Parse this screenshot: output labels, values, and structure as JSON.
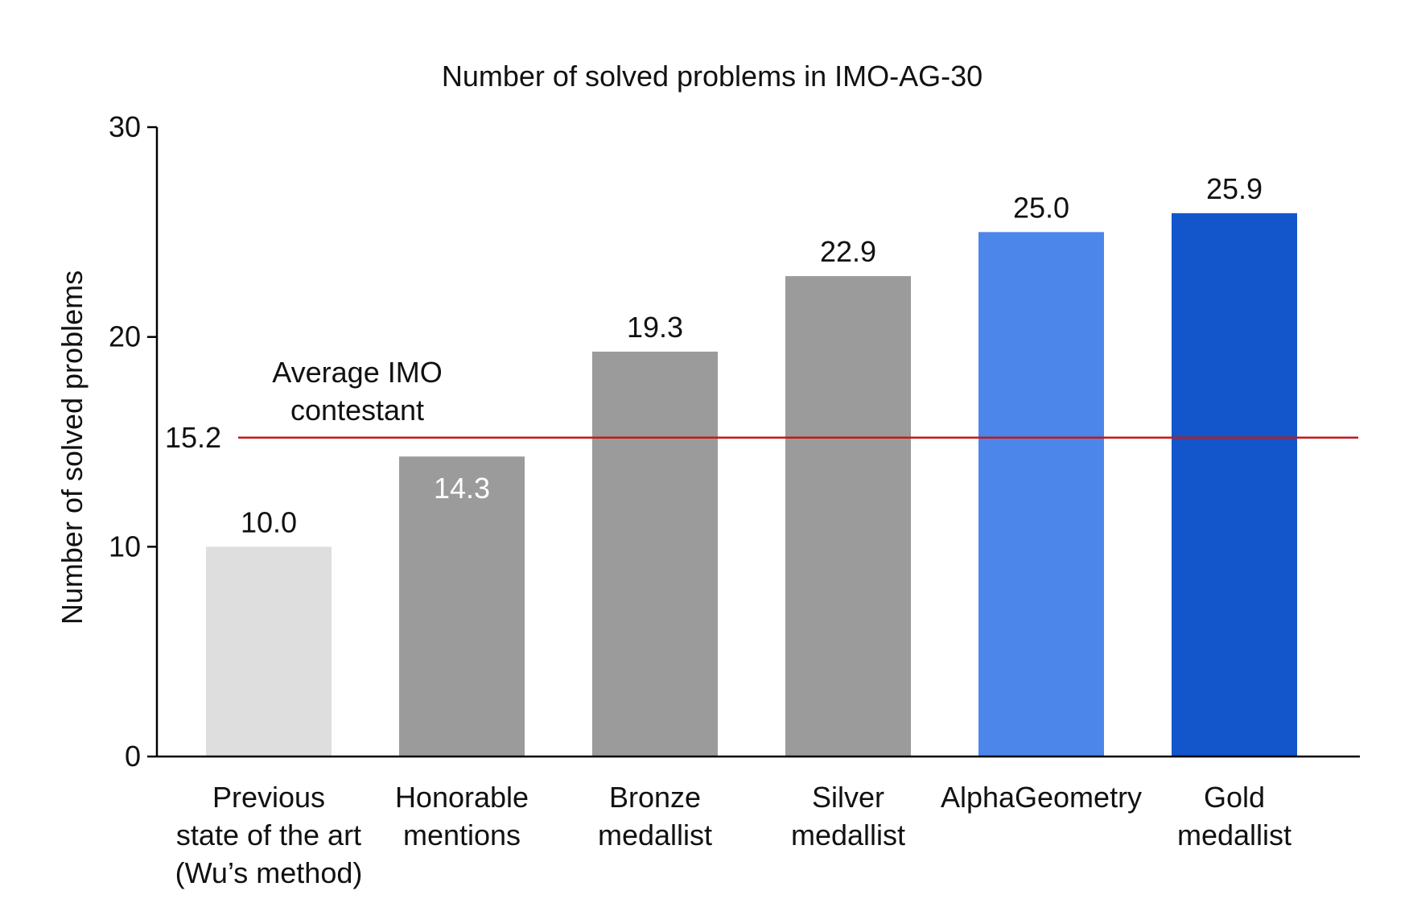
{
  "chart_data": {
    "type": "bar",
    "title": "Number of solved problems in IMO-AG-30",
    "ylabel": "Number of solved problems",
    "xlabel": "",
    "ylim": [
      0,
      30
    ],
    "yticks": [
      "0",
      "10",
      "20",
      "30"
    ],
    "grid": false,
    "legend": "none",
    "categories": [
      [
        "Previous",
        "state of the art",
        "(Wu’s method)"
      ],
      [
        "Honorable",
        "mentions"
      ],
      [
        "Bronze",
        "medallist"
      ],
      [
        "Silver",
        "medallist"
      ],
      [
        "AlphaGeometry"
      ],
      [
        "Gold",
        "medallist"
      ]
    ],
    "values": [
      10.0,
      14.3,
      19.3,
      22.9,
      25.0,
      25.9
    ],
    "value_labels": [
      "10.0",
      "14.3",
      "19.3",
      "22.9",
      "25.0",
      "25.9"
    ],
    "bar_colors": [
      "#dedede",
      "#9b9b9b",
      "#9b9b9b",
      "#9b9b9b",
      "#4d86ea",
      "#1356cb"
    ],
    "label_inside": [
      false,
      true,
      false,
      false,
      false,
      false
    ],
    "reference_line": {
      "value": 15.2,
      "value_label": "15.2",
      "label": [
        "Average IMO",
        "contestant"
      ],
      "color": "#c41a1a"
    }
  }
}
